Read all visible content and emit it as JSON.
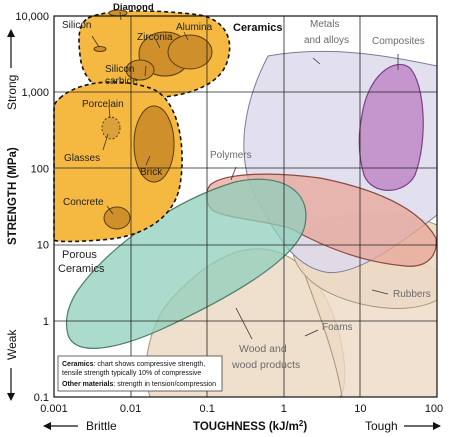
{
  "chart_data": {
    "type": "region-map",
    "xlabel": "TOUGHNESS (kJ/m2)",
    "ylabel": "STRENGTH (MPa)",
    "x_scale": "log",
    "y_scale": "log",
    "xlim": [
      0.001,
      100
    ],
    "ylim": [
      0.1,
      10000
    ],
    "x_ticks": [
      {
        "value": 0.001,
        "label": "0.001"
      },
      {
        "value": 0.01,
        "label": "0.01"
      },
      {
        "value": 0.1,
        "label": "0.1"
      },
      {
        "value": 1,
        "label": "1"
      },
      {
        "value": 10,
        "label": "10"
      },
      {
        "value": 100,
        "label": "100"
      }
    ],
    "y_ticks": [
      {
        "value": 0.1,
        "label": "0.1"
      },
      {
        "value": 1,
        "label": "1"
      },
      {
        "value": 10,
        "label": "10"
      },
      {
        "value": 100,
        "label": "100"
      },
      {
        "value": 1000,
        "label": "1,000"
      },
      {
        "value": 10000,
        "label": "10,000"
      }
    ],
    "grid": true,
    "x_annotations": {
      "left": "Brittle",
      "right": "Tough"
    },
    "y_annotations": {
      "bottom": "Weak",
      "top": "Strong"
    },
    "regions": [
      {
        "name": "Wood and wood products",
        "color": "#ecd9c4"
      },
      {
        "name": "Foams",
        "color": "#ecd9c4"
      },
      {
        "name": "Rubbers",
        "color": "#ecd9c4"
      },
      {
        "name": "Metals and alloys",
        "color": "#ddd9ec"
      },
      {
        "name": "Composites",
        "color": "#c08ac8"
      },
      {
        "name": "Polymers",
        "color": "#e8a598"
      },
      {
        "name": "Ceramics",
        "color": "#f5b942"
      },
      {
        "name": "Porous Ceramics",
        "color": "#f5b942"
      }
    ],
    "ellipses": [
      {
        "name": "Diamond"
      },
      {
        "name": "Silicon"
      },
      {
        "name": "Zirconia"
      },
      {
        "name": "Alumina"
      },
      {
        "name": "Silicon carbide"
      },
      {
        "name": "Porcelain"
      },
      {
        "name": "Glasses"
      },
      {
        "name": "Brick"
      },
      {
        "name": "Concrete"
      }
    ],
    "labels": {
      "diamond": "Diamond",
      "silicon": "Silicon",
      "zirconia": "Zirconia",
      "alumina": "Alumina",
      "ceramics": "Ceramics",
      "silicon_carbide_1": "Silicon",
      "silicon_carbide_2": "carbide",
      "porcelain": "Porcelain",
      "glasses": "Glasses",
      "brick": "Brick",
      "concrete": "Concrete",
      "porous_1": "Porous",
      "porous_2": "Ceramics",
      "metals_1": "Metals",
      "metals_2": "and alloys",
      "composites": "Composites",
      "polymers": "Polymers",
      "rubbers": "Rubbers",
      "foams": "Foams",
      "wood_1": "Wood and",
      "wood_2": "wood products"
    },
    "note": {
      "line1_bold": "Ceramics",
      "line1_rest": ": chart shows compressive strength,",
      "line2": "tensile strength typically 10% of compressive",
      "line3_bold": "Other materials",
      "line3_rest": ": strength in tension/compression"
    }
  }
}
